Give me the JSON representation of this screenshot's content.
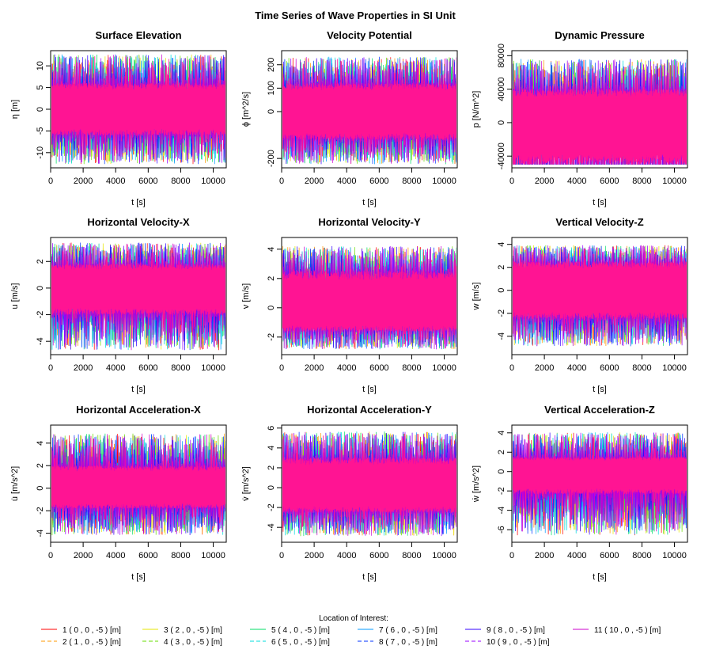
{
  "figure_title": "Time Series of Wave Properties in SI Unit",
  "legend": {
    "title": "Location of Interest:",
    "entries": [
      {
        "label": "1  ( 0 ,  0 , -5 ) [m]",
        "color": "#ff0000",
        "dash": "solid"
      },
      {
        "label": "2  ( 1 ,  0 , -5 ) [m]",
        "color": "#ff9900",
        "dash": "dashed"
      },
      {
        "label": "3  ( 2 ,  0 , -5 ) [m]",
        "color": "#e6e600",
        "dash": "solid"
      },
      {
        "label": "4  ( 3 ,  0 , -5 ) [m]",
        "color": "#66dd00",
        "dash": "dashed"
      },
      {
        "label": "5  ( 4 ,  0 , -5 ) [m]",
        "color": "#00dd66",
        "dash": "solid"
      },
      {
        "label": "6  ( 5 ,  0 , -5 ) [m]",
        "color": "#00dddd",
        "dash": "dashed"
      },
      {
        "label": "7  ( 6 ,  0 , -5 ) [m]",
        "color": "#0099ff",
        "dash": "solid"
      },
      {
        "label": "8  ( 7 ,  0 , -5 ) [m]",
        "color": "#0033ff",
        "dash": "dashed"
      },
      {
        "label": "9  ( 8 ,  0 , -5 ) [m]",
        "color": "#3300ff",
        "dash": "solid"
      },
      {
        "label": "10  ( 9 ,  0 , -5 ) [m]",
        "color": "#9900ff",
        "dash": "dashed"
      },
      {
        "label": "11  ( 10 ,  0 , -5 ) [m]",
        "color": "#cc00cc",
        "dash": "solid"
      }
    ]
  },
  "chart_data": [
    {
      "type": "line",
      "title": "Surface Elevation",
      "xlabel": "t [s]",
      "ylabel": "η [m]",
      "xlim": [
        0,
        10800
      ],
      "ylim": [
        -13.5,
        13.5
      ],
      "xticks": [
        0,
        2000,
        4000,
        6000,
        8000,
        10000
      ],
      "yticks": [
        -10,
        -5,
        0,
        5,
        10
      ],
      "band": {
        "core": [
          -6,
          6
        ],
        "spike_max": 13,
        "spike_min": -13
      },
      "front_color": "#ff1493"
    },
    {
      "type": "line",
      "title": "Velocity Potential",
      "xlabel": "t [s]",
      "ylabel": "ϕ [m^2/s]",
      "xlim": [
        0,
        10800
      ],
      "ylim": [
        -240,
        260
      ],
      "xticks": [
        0,
        2000,
        4000,
        6000,
        8000,
        10000
      ],
      "yticks": [
        -200,
        0,
        100,
        200
      ],
      "band": {
        "core": [
          -120,
          120
        ],
        "spike_max": 240,
        "spike_min": -230
      },
      "front_color": "#ff1493"
    },
    {
      "type": "line",
      "title": "Dynamic Pressure",
      "xlabel": "t [s]",
      "ylabel": "p [N/m^2]",
      "xlim": [
        0,
        10800
      ],
      "ylim": [
        -54000,
        86000
      ],
      "xticks": [
        0,
        2000,
        4000,
        6000,
        8000,
        10000
      ],
      "yticks": [
        -40000,
        0,
        40000,
        80000
      ],
      "band": {
        "core": [
          -50000,
          40000
        ],
        "spike_max": 78000,
        "spike_min": -50000
      },
      "front_color": "#ff1493"
    },
    {
      "type": "line",
      "title": "Horizontal Velocity-X",
      "xlabel": "t [s]",
      "ylabel": "u [m/s]",
      "xlim": [
        0,
        10800
      ],
      "ylim": [
        -5,
        3.8
      ],
      "xticks": [
        0,
        2000,
        4000,
        6000,
        8000,
        10000
      ],
      "yticks": [
        -4,
        -2,
        0,
        2
      ],
      "band": {
        "core": [
          -2,
          1.8
        ],
        "spike_max": 3.5,
        "spike_min": -4.8
      },
      "front_color": "#ff1493"
    },
    {
      "type": "line",
      "title": "Horizontal Velocity-Y",
      "xlabel": "t [s]",
      "ylabel": "v [m/s]",
      "xlim": [
        0,
        10800
      ],
      "ylim": [
        -3.2,
        4.8
      ],
      "xticks": [
        0,
        2000,
        4000,
        6000,
        8000,
        10000
      ],
      "yticks": [
        -2,
        0,
        2,
        4
      ],
      "band": {
        "core": [
          -1.6,
          2.5
        ],
        "spike_max": 4.3,
        "spike_min": -2.9
      },
      "front_color": "#ff1493"
    },
    {
      "type": "line",
      "title": "Vertical Velocity-Z",
      "xlabel": "t [s]",
      "ylabel": "w [m/s]",
      "xlim": [
        0,
        10800
      ],
      "ylim": [
        -5.6,
        4.6
      ],
      "xticks": [
        0,
        2000,
        4000,
        6000,
        8000,
        10000
      ],
      "yticks": [
        -4,
        -2,
        0,
        2,
        4
      ],
      "band": {
        "core": [
          -2.5,
          2.5
        ],
        "spike_max": 4.0,
        "spike_min": -5.0
      },
      "front_color": "#ff1493"
    },
    {
      "type": "line",
      "title": "Horizontal Acceleration-X",
      "xlabel": "t [s]",
      "ylabel": "u̇ [m/s^2]",
      "xlim": [
        0,
        10800
      ],
      "ylim": [
        -4.8,
        5.6
      ],
      "xticks": [
        0,
        2000,
        4000,
        6000,
        8000,
        10000
      ],
      "yticks": [
        -4,
        -2,
        0,
        2,
        4
      ],
      "band": {
        "core": [
          -1.8,
          2.0
        ],
        "spike_max": 5.0,
        "spike_min": -4.3
      },
      "front_color": "#ff1493"
    },
    {
      "type": "line",
      "title": "Horizontal Acceleration-Y",
      "xlabel": "t [s]",
      "ylabel": "v̇ [m/s^2]",
      "xlim": [
        0,
        10800
      ],
      "ylim": [
        -5.5,
        6.3
      ],
      "xticks": [
        0,
        2000,
        4000,
        6000,
        8000,
        10000
      ],
      "yticks": [
        -4,
        -2,
        0,
        2,
        4,
        6
      ],
      "band": {
        "core": [
          -2.5,
          3.0
        ],
        "spike_max": 5.8,
        "spike_min": -5.0
      },
      "front_color": "#ff1493"
    },
    {
      "type": "line",
      "title": "Vertical Acceleration-Z",
      "xlabel": "t [s]",
      "ylabel": "ẇ [m/s^2]",
      "xlim": [
        0,
        10800
      ],
      "ylim": [
        -7.3,
        4.8
      ],
      "xticks": [
        0,
        2000,
        4000,
        6000,
        8000,
        10000
      ],
      "yticks": [
        -6,
        -4,
        -2,
        0,
        2,
        4
      ],
      "band": {
        "core": [
          -2.3,
          1.5
        ],
        "spike_max": 4.2,
        "spike_min": -6.8
      },
      "front_color": "#ff1493"
    }
  ]
}
